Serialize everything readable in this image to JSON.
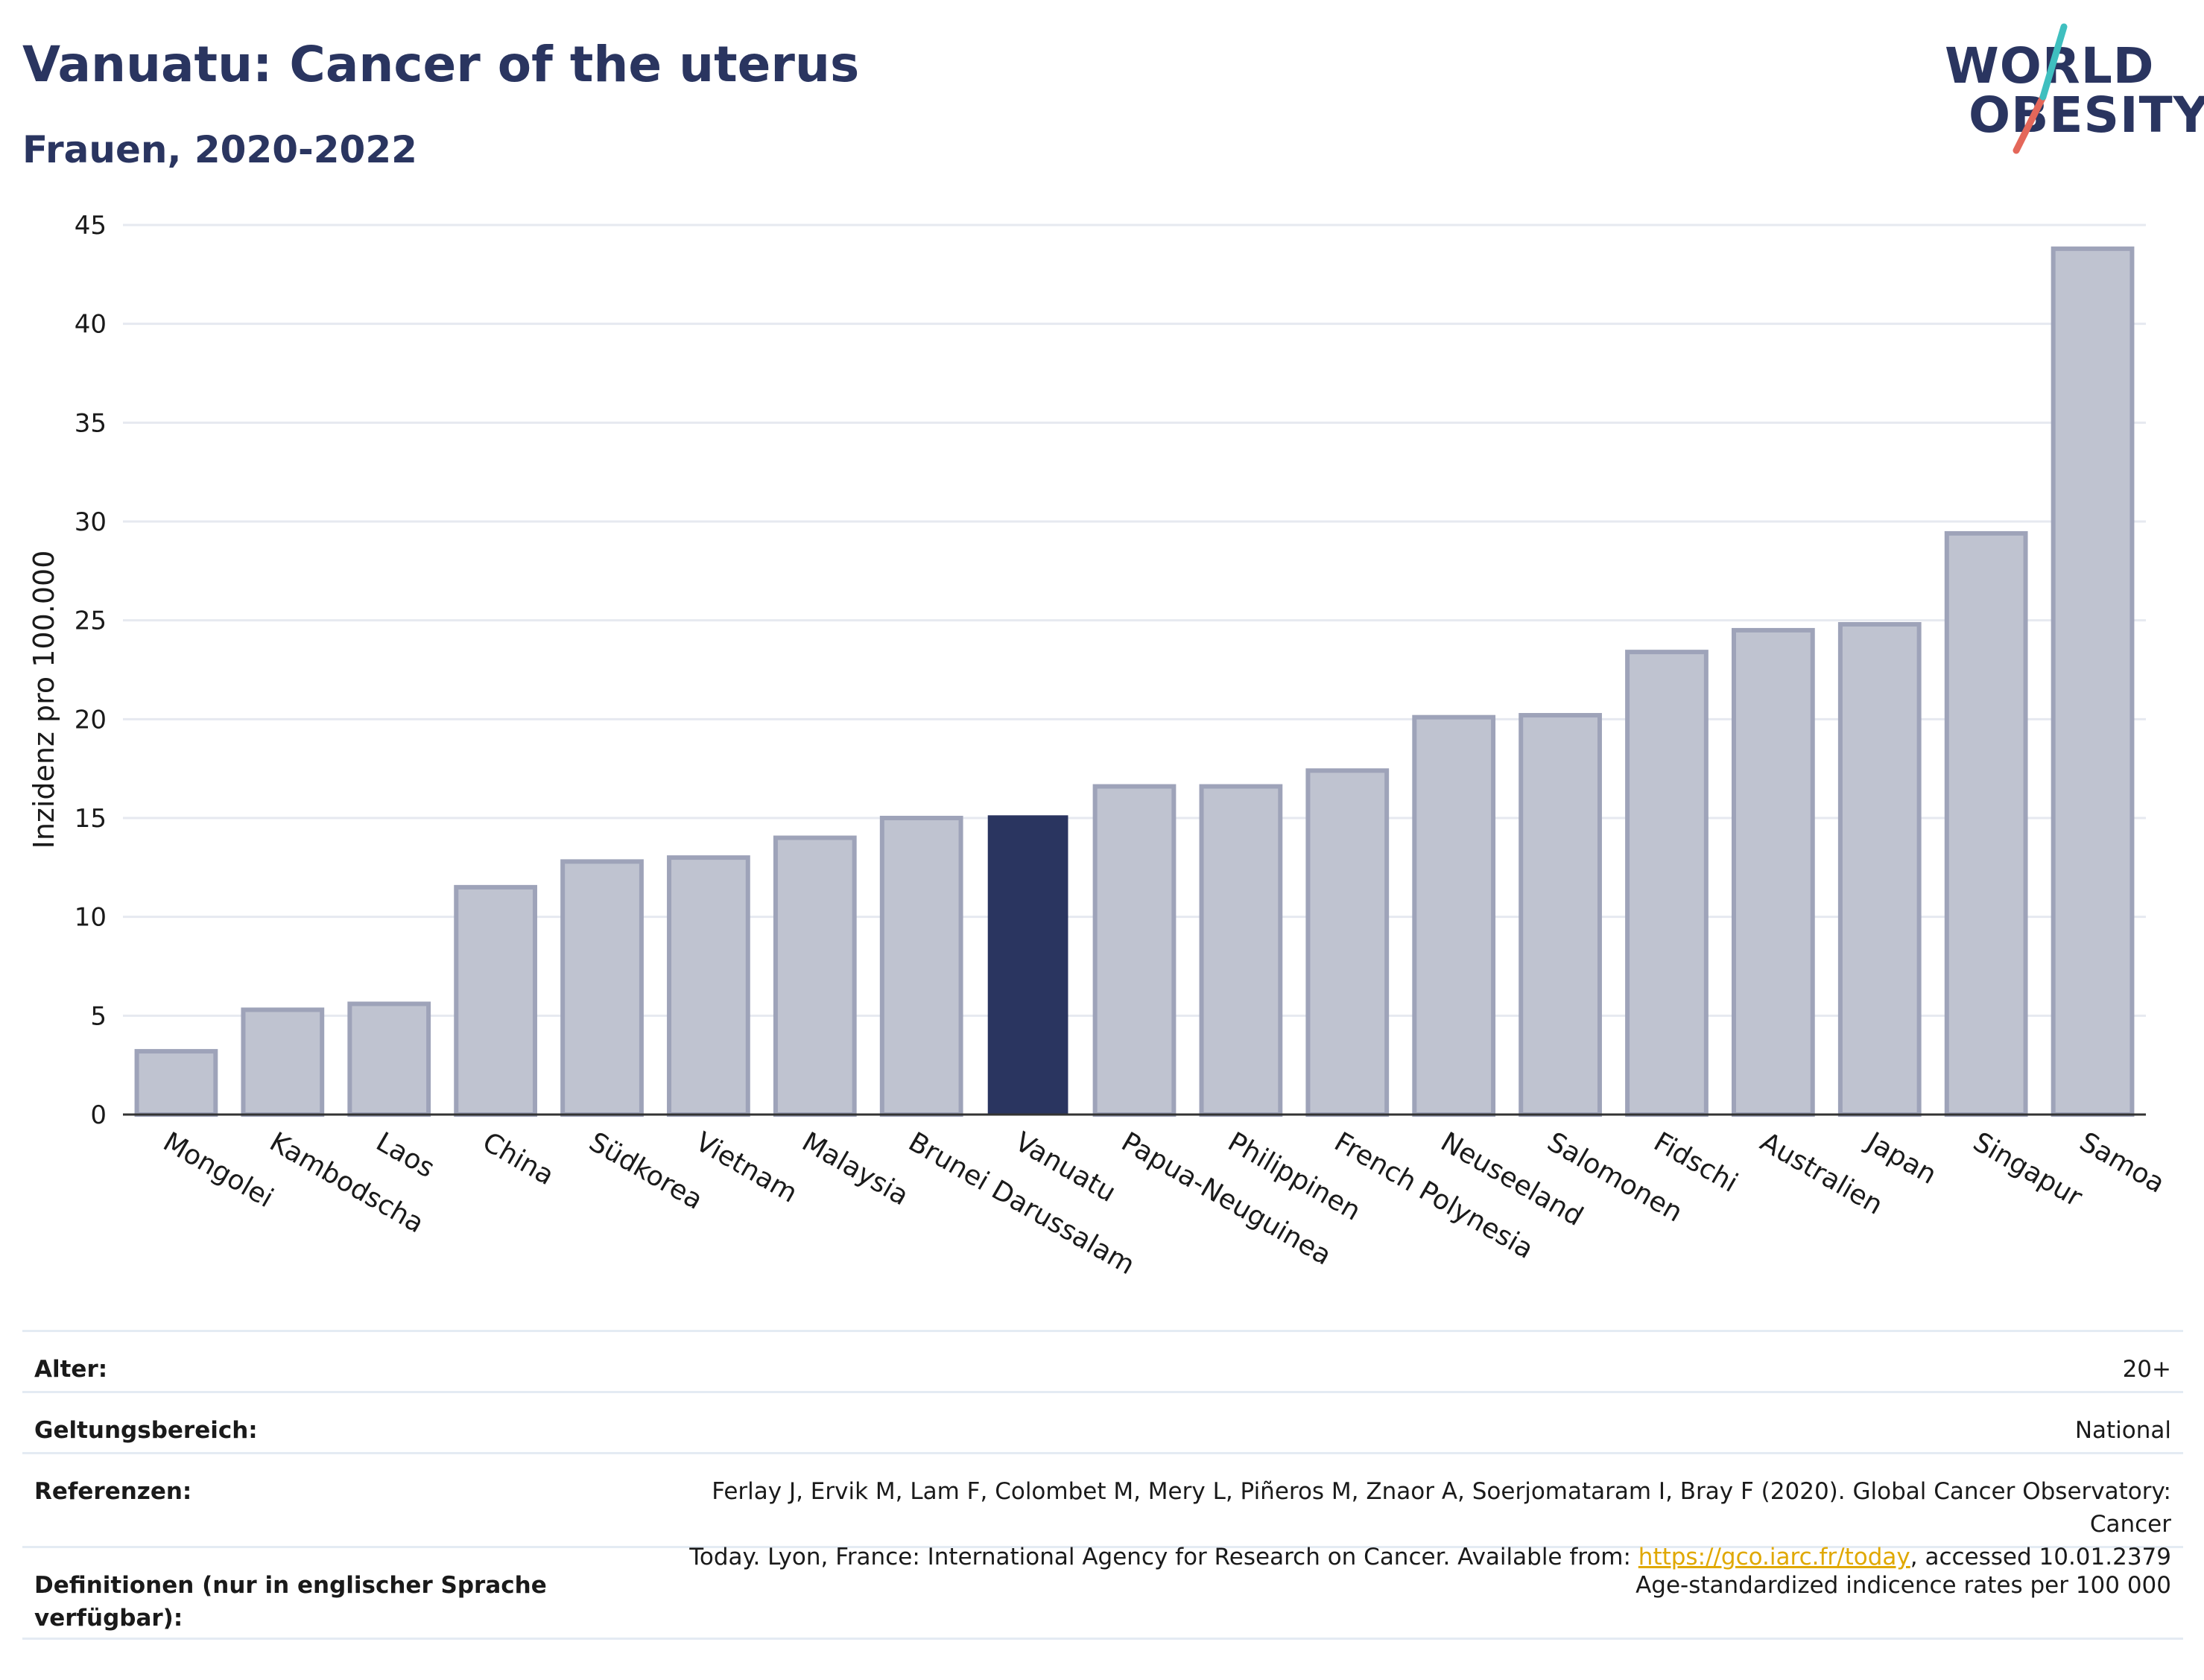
{
  "title": "Vanuatu: Cancer of the uterus",
  "subtitle": "Frauen, 2020-2022",
  "logo": {
    "line1": "WORLD",
    "line2": "OBESITY"
  },
  "colors": {
    "highlight": "#2a3560",
    "bar_fill": "#bfc3d0",
    "bar_stroke": "#9ea3b9",
    "grid": "#e6e9f0",
    "text": "#2a3560",
    "link": "#e0a800",
    "logo_teal": "#3fbfbf",
    "logo_red": "#e4675a"
  },
  "chart_data": {
    "type": "bar",
    "categories": [
      "Mongolei",
      "Kambodscha",
      "Laos",
      "China",
      "Südkorea",
      "Vietnam",
      "Malaysia",
      "Brunei Darussalam",
      "Vanuatu",
      "Papua-Neuguinea",
      "Philippinen",
      "French Polynesia",
      "Neuseeland",
      "Salomonen",
      "Fidschi",
      "Australien",
      "Japan",
      "Singapur",
      "Samoa"
    ],
    "values": [
      3.2,
      5.3,
      5.6,
      11.5,
      12.8,
      13.0,
      14.0,
      15.0,
      15.1,
      16.6,
      16.6,
      17.4,
      20.1,
      20.2,
      23.4,
      24.5,
      24.8,
      29.4,
      43.8
    ],
    "highlight": "Vanuatu",
    "ylabel": "Inzidenz pro 100.000",
    "xlabel": "",
    "ylim": [
      0,
      45
    ],
    "yticks": [
      0,
      5,
      10,
      15,
      20,
      25,
      30,
      35,
      40,
      45
    ],
    "grid": true
  },
  "meta": [
    {
      "label": "Alter:",
      "value": "20+"
    },
    {
      "label": "Geltungsbereich:",
      "value": "National"
    },
    {
      "label": "Referenzen:",
      "value_line1": "Ferlay J, Ervik M, Lam F, Colombet M, Mery L, Piñeros M, Znaor A, Soerjomataram I, Bray F (2020). Global Cancer Observatory: Cancer",
      "value_pre": "Today. Lyon, France: International Agency for Research on Cancer. Available from: ",
      "link": "https://gco.iarc.fr/today",
      "value_post": ", accessed 10.01.2379"
    },
    {
      "label": "Definitionen (nur in englischer Sprache verfügbar):",
      "value": "Age-standardized indicence rates per 100 000"
    }
  ]
}
